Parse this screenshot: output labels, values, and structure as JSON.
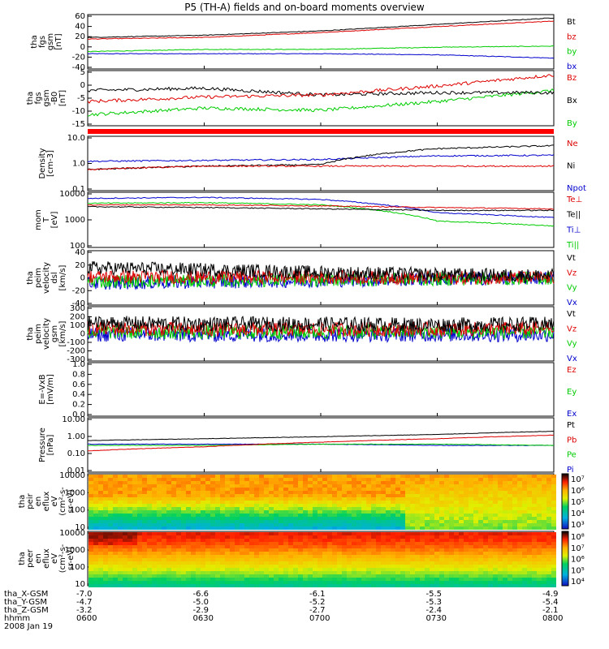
{
  "title": "P5 (TH-A) fields and on-board moments overview",
  "panels": [
    {
      "id": "fgs",
      "ylabel": [
        "tha",
        "fgs",
        "gsm",
        "[nT]"
      ],
      "yticks": [
        "60",
        "40",
        "20",
        "0",
        "-20",
        "-40"
      ],
      "legend": [
        {
          "t": "Bt",
          "c": "#000000"
        },
        {
          "t": "bz",
          "c": "#dd0000"
        },
        {
          "t": "by",
          "c": "#00cc00"
        },
        {
          "t": "bx",
          "c": "#0000cc"
        }
      ]
    },
    {
      "id": "fgs_zoom",
      "ylabel": [
        "tha",
        "fgs",
        "gsm",
        "-B0",
        "[nT]"
      ],
      "yticks": [
        "5",
        "0",
        "-5",
        "-10",
        "-15"
      ],
      "legend": [
        {
          "t": "Bz",
          "c": "#dd0000"
        },
        {
          "t": "Bx",
          "c": "#000000"
        },
        {
          "t": "By",
          "c": "#00cc00"
        }
      ]
    },
    {
      "id": "density",
      "ylabel": [
        "Density",
        "[cm-3]"
      ],
      "yticks": [
        "10.0",
        "1.0",
        "0.1"
      ],
      "legend": [
        {
          "t": "Ne",
          "c": "#dd0000"
        },
        {
          "t": "Ni",
          "c": "#000000"
        },
        {
          "t": "Npot",
          "c": "#0000cc"
        }
      ]
    },
    {
      "id": "temp",
      "ylabel": [
        "mom",
        "T",
        "[eV]"
      ],
      "yticks": [
        "10000",
        "1000",
        "100"
      ],
      "legend": [
        {
          "t": "Te⊥",
          "c": "#dd0000"
        },
        {
          "t": "Te||",
          "c": "#000000"
        },
        {
          "t": "Ti⊥",
          "c": "#0000cc"
        },
        {
          "t": "Ti||",
          "c": "#00cc00"
        }
      ]
    },
    {
      "id": "peim_dsl",
      "ylabel": [
        "tha",
        "peim",
        "velocity",
        "dsl",
        "[km/s]"
      ],
      "yticks": [
        "40",
        "20",
        "0",
        "-20",
        "-40"
      ],
      "legend": [
        {
          "t": "Vt",
          "c": "#000000"
        },
        {
          "t": "Vz",
          "c": "#dd0000"
        },
        {
          "t": "Vy",
          "c": "#00cc00"
        },
        {
          "t": "Vx",
          "c": "#0000cc"
        }
      ]
    },
    {
      "id": "peim_gsm",
      "ylabel": [
        "tha",
        "peim",
        "velocity",
        "gsm",
        "[km/s]"
      ],
      "yticks": [
        "300",
        "200",
        "100",
        "0",
        "-100",
        "-200",
        "-300"
      ],
      "legend": [
        {
          "t": "Vt",
          "c": "#000000"
        },
        {
          "t": "Vz",
          "c": "#dd0000"
        },
        {
          "t": "Vy",
          "c": "#00cc00"
        },
        {
          "t": "Vx",
          "c": "#0000cc"
        }
      ]
    },
    {
      "id": "efield",
      "ylabel": [
        "E=-VxB",
        "[mV/m]"
      ],
      "yticks": [
        "1.0",
        "0.8",
        "0.6",
        "0.4",
        "0.2",
        "0.0"
      ],
      "legend": [
        {
          "t": "Ez",
          "c": "#dd0000"
        },
        {
          "t": "Ey",
          "c": "#00cc00"
        },
        {
          "t": "Ex",
          "c": "#0000cc"
        }
      ]
    },
    {
      "id": "pressure",
      "ylabel": [
        "Pressure",
        "[nPa]"
      ],
      "yticks": [
        "10.00",
        "1.00",
        "0.10",
        "0.01"
      ],
      "legend": [
        {
          "t": "Pt",
          "c": "#000000"
        },
        {
          "t": "Pb",
          "c": "#dd0000"
        },
        {
          "t": "Pe",
          "c": "#00cc00"
        },
        {
          "t": "Pi",
          "c": "#0000cc"
        }
      ]
    },
    {
      "id": "peir_spec",
      "ylabel": [
        "tha",
        "peir",
        "en",
        "eflux",
        "eV",
        "(cm²-s-",
        "sr-eV)"
      ],
      "yticks": [
        "10000",
        "1000",
        "100",
        "10"
      ],
      "cbar": [
        "10⁷",
        "10⁶",
        "10⁵",
        "10⁴",
        "10³"
      ]
    },
    {
      "id": "peer_spec",
      "ylabel": [
        "tha",
        "peer",
        "en",
        "eflux",
        "eV",
        "(cm²-s-",
        "sr-eV)"
      ],
      "yticks": [
        "10000",
        "1000",
        "100",
        "10"
      ],
      "cbar": [
        "10⁸",
        "10⁷",
        "10⁶",
        "10⁵",
        "10⁴"
      ]
    }
  ],
  "footer": {
    "rows": [
      {
        "label": "tha_X-GSM",
        "values": [
          "-7.0",
          "-6.6",
          "-6.1",
          "-5.5",
          "-4.9"
        ]
      },
      {
        "label": "tha_Y-GSM",
        "values": [
          "-4.7",
          "-5.0",
          "-5.2",
          "-5.3",
          "-5.4"
        ]
      },
      {
        "label": "tha_Z-GSM",
        "values": [
          "-3.2",
          "-2.9",
          "-2.7",
          "-2.4",
          "-2.1"
        ]
      },
      {
        "label": "hhmm",
        "values": [
          "0600",
          "0630",
          "0700",
          "0730",
          "0800"
        ]
      }
    ],
    "date": "2008 Jan 19"
  },
  "chart_data": [
    {
      "type": "line",
      "title": "P5 (TH-A) fields and on-board moments overview",
      "ylabel": "tha fgs gsm [nT]",
      "ylim": [
        -40,
        60
      ],
      "x": [
        "0600",
        "0630",
        "0700",
        "0730",
        "0800"
      ],
      "series": [
        {
          "name": "Bt",
          "values": [
            18,
            22,
            30,
            42,
            54
          ]
        },
        {
          "name": "bz",
          "values": [
            15,
            18,
            27,
            38,
            48
          ]
        },
        {
          "name": "by",
          "values": [
            -8,
            -4,
            -4,
            0,
            2
          ]
        },
        {
          "name": "bx",
          "values": [
            -12,
            -12,
            -12,
            -14,
            -20
          ]
        }
      ]
    },
    {
      "type": "line",
      "ylabel": "tha fgs gsm-B0 [nT]",
      "ylim": [
        -17,
        8
      ],
      "x": [
        "0600",
        "0630",
        "0700",
        "0730",
        "0800"
      ],
      "series": [
        {
          "name": "Bz",
          "values": [
            -6,
            -4,
            -3,
            1,
            6
          ]
        },
        {
          "name": "Bx",
          "values": [
            -1,
            0,
            -3,
            -2,
            -2
          ]
        },
        {
          "name": "By",
          "values": [
            -12,
            -9,
            -10,
            -6,
            -1
          ]
        }
      ]
    },
    {
      "type": "line",
      "ylabel": "Density [cm-3]",
      "log": true,
      "ylim": [
        0.1,
        10
      ],
      "x": [
        "0600",
        "0630",
        "0700",
        "0730",
        "0800"
      ],
      "series": [
        {
          "name": "Ne",
          "values": [
            0.6,
            0.8,
            0.8,
            0.8,
            0.8
          ]
        },
        {
          "name": "Ni",
          "values": [
            0.6,
            0.8,
            0.9,
            3.5,
            4.5
          ]
        },
        {
          "name": "Npot",
          "values": [
            1.2,
            1.3,
            1.4,
            1.9,
            2.0
          ]
        }
      ]
    },
    {
      "type": "line",
      "ylabel": "mom T [eV]",
      "log": true,
      "ylim": [
        100,
        10000
      ],
      "x": [
        "0600",
        "0630",
        "0700",
        "0730",
        "0800"
      ],
      "series": [
        {
          "name": "Te⊥",
          "values": [
            3500,
            3500,
            3200,
            2800,
            2500
          ]
        },
        {
          "name": "Te||",
          "values": [
            3000,
            2800,
            2500,
            2200,
            2200
          ]
        },
        {
          "name": "Ti⊥",
          "values": [
            6000,
            6500,
            5500,
            1800,
            1200
          ]
        },
        {
          "name": "Ti||",
          "values": [
            4000,
            4200,
            3500,
            900,
            600
          ]
        }
      ]
    },
    {
      "type": "line",
      "ylabel": "tha peim velocity dsl [km/s]",
      "ylim": [
        -40,
        40
      ],
      "x": [
        "0600",
        "0630",
        "0700",
        "0730",
        "0800"
      ],
      "series": [
        {
          "name": "Vt",
          "values": [
            15,
            12,
            8,
            5,
            3
          ]
        },
        {
          "name": "Vz",
          "values": [
            2,
            1,
            1,
            0,
            0
          ]
        },
        {
          "name": "Vy",
          "values": [
            -5,
            -4,
            -3,
            -2,
            0
          ]
        },
        {
          "name": "Vx",
          "values": [
            -8,
            -6,
            -4,
            -2,
            0
          ]
        }
      ]
    },
    {
      "type": "line",
      "ylabel": "tha peim velocity gsm [km/s]",
      "ylim": [
        -300,
        300
      ],
      "x": [
        "0600",
        "0630",
        "0700",
        "0730",
        "0800"
      ],
      "series": [
        {
          "name": "Vt",
          "values": [
            120,
            110,
            110,
            100,
            110
          ]
        },
        {
          "name": "Vz",
          "values": [
            60,
            50,
            50,
            50,
            60
          ]
        },
        {
          "name": "Vy",
          "values": [
            20,
            20,
            20,
            20,
            20
          ]
        },
        {
          "name": "Vx",
          "values": [
            -10,
            -10,
            -10,
            -10,
            -10
          ]
        }
      ]
    },
    {
      "type": "line",
      "ylabel": "E=-VxB [mV/m]",
      "ylim": [
        0,
        1
      ],
      "series": []
    },
    {
      "type": "line",
      "ylabel": "Pressure [nPa]",
      "log": true,
      "ylim": [
        0.01,
        10
      ],
      "x": [
        "0600",
        "0630",
        "0700",
        "0730",
        "0800"
      ],
      "series": [
        {
          "name": "Pt",
          "values": [
            0.55,
            0.7,
            0.9,
            1.2,
            1.8
          ]
        },
        {
          "name": "Pb",
          "values": [
            0.15,
            0.25,
            0.45,
            0.7,
            1.1
          ]
        },
        {
          "name": "Pe",
          "values": [
            0.3,
            0.3,
            0.35,
            0.35,
            0.3
          ]
        },
        {
          "name": "Pi",
          "values": [
            0.35,
            0.35,
            0.35,
            0.3,
            0.3
          ]
        }
      ]
    },
    {
      "type": "heatmap",
      "ylabel": "tha peir en eflux",
      "log": true,
      "ylim": [
        8,
        20000
      ]
    },
    {
      "type": "heatmap",
      "ylabel": "tha peer en eflux",
      "log": true,
      "ylim": [
        8,
        20000
      ]
    }
  ]
}
